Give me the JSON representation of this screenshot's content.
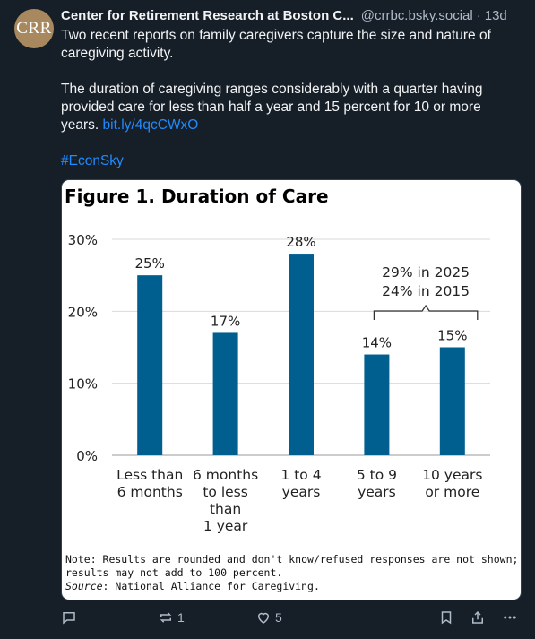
{
  "author": {
    "avatar_text": "CRR",
    "name": "Center for Retirement Research at Boston C...",
    "handle": "@crrbc.bsky.social",
    "separator": "·",
    "time": "13d"
  },
  "post": {
    "paragraph1": "Two recent reports on family caregivers capture the size and nature of caregiving activity.",
    "paragraph2": "The duration of caregiving ranges considerably with a quarter having provided care for less than half a year and 15 percent for 10 or more years.",
    "link_text": "bit.ly/4qcCWxO",
    "hashtag": "#EconSky"
  },
  "chart_data": {
    "type": "bar",
    "title": "Figure 1. Duration of Care",
    "categories": [
      [
        "Less than",
        "6 months"
      ],
      [
        "6 months",
        "to less",
        "than",
        "1 year"
      ],
      [
        "1 to 4",
        "years"
      ],
      [
        "5 to 9",
        "years"
      ],
      [
        "10 years",
        "or more"
      ]
    ],
    "values": [
      25,
      17,
      28,
      14,
      15
    ],
    "value_labels": [
      "25%",
      "17%",
      "28%",
      "14%",
      "15%"
    ],
    "ylim": [
      0,
      30
    ],
    "yticks": [
      "0%",
      "10%",
      "20%",
      "30%"
    ],
    "grid": true,
    "bar_color": "#005f8f",
    "annotation": [
      "29% in 2025",
      "24% in 2015"
    ],
    "note_lines": [
      "Note: Results are rounded and don't know/refused responses are not shown;",
      "results may not add to 100 percent."
    ],
    "source_label": "Source",
    "source_text": ": National Alliance for Caregiving."
  },
  "actions": {
    "reply_count": "",
    "repost_count": "1",
    "like_count": "5"
  },
  "colors": {
    "background": "#161e27",
    "link": "#208bfe",
    "muted": "#aebbc9"
  }
}
